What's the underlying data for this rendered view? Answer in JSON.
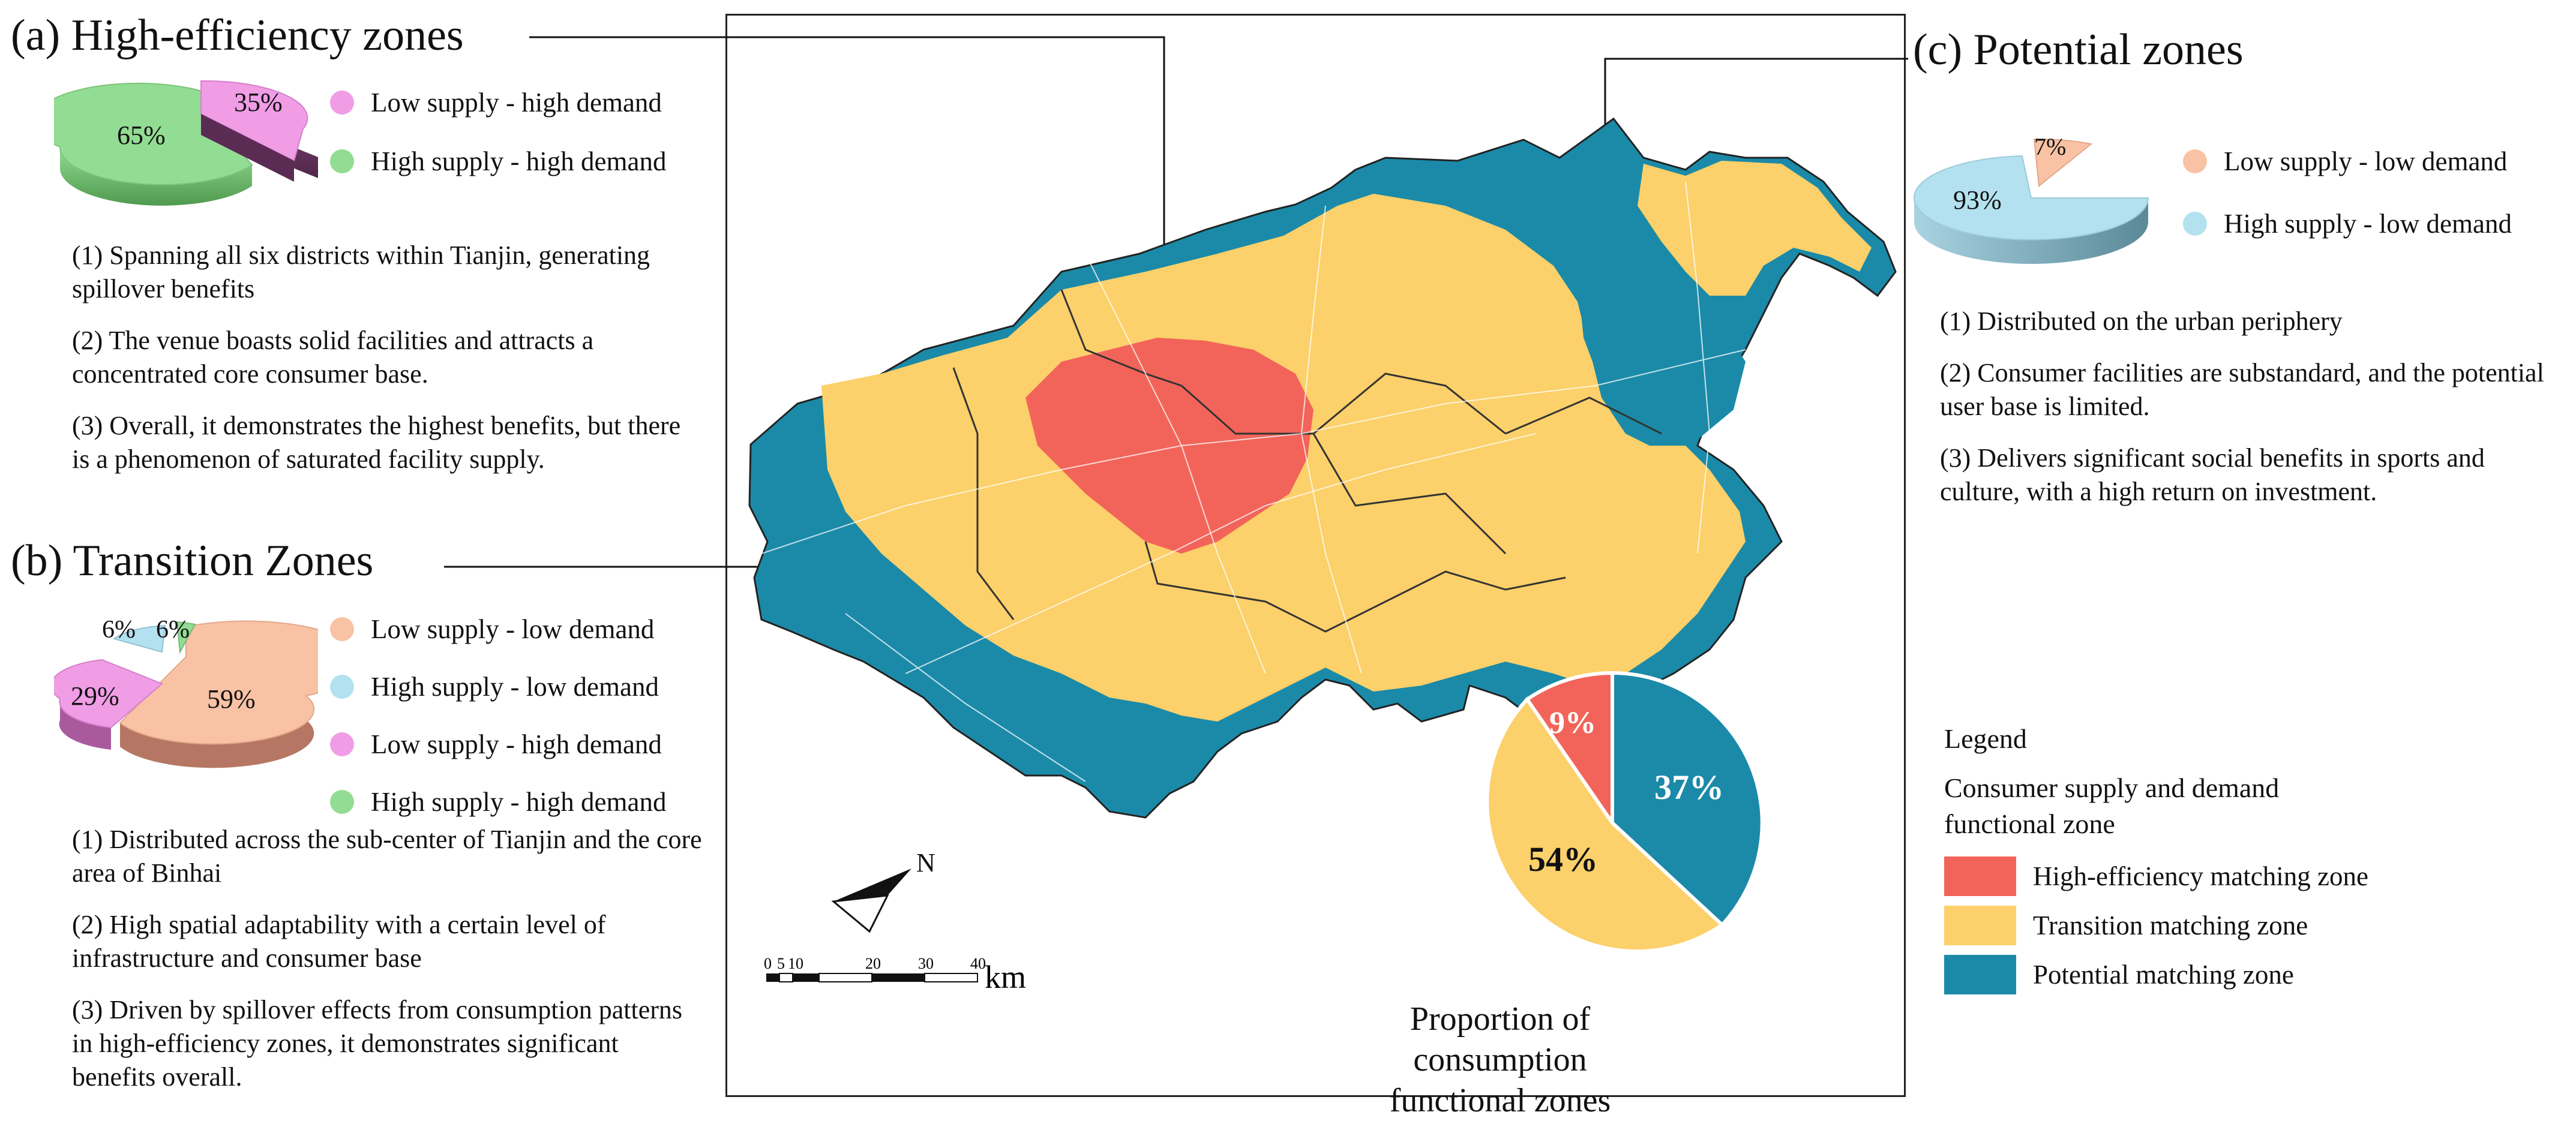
{
  "colors": {
    "high_efficiency": "#f2645a",
    "transition": "#fcd06a",
    "potential": "#1b8aa8",
    "low_supply_high_demand": "#f09de6",
    "high_supply_high_demand": "#93dc93",
    "low_supply_low_demand": "#f9c2a5",
    "high_supply_low_demand": "#b3e1ef"
  },
  "panel_a": {
    "title": "(a) High-efficiency zones",
    "pie_labels": [
      "65%",
      "35%"
    ],
    "legend": [
      "Low supply - high demand",
      "High supply - high demand"
    ],
    "points": [
      "(1) Spanning all six districts within Tianjin, generating spillover benefits",
      "(2) The venue boasts solid facilities and attracts a concentrated core consumer base.",
      "(3) Overall, it demonstrates the highest benefits, but there is a phenomenon of saturated facility supply."
    ]
  },
  "panel_b": {
    "title": "(b) Transition Zones",
    "pie_labels": [
      "59%",
      "29%",
      "6%",
      "6%"
    ],
    "legend": [
      "Low supply - low demand",
      "High supply - low demand",
      "Low supply - high demand",
      "High supply - high demand"
    ],
    "points": [
      "(1) Distributed across the sub-center of Tianjin and the core area of Binhai",
      "(2) High spatial adaptability with a certain level of infrastructure and consumer base",
      "(3) Driven by spillover effects from consumption patterns in high-efficiency zones, it demonstrates significant benefits overall."
    ]
  },
  "panel_c": {
    "title": "(c) Potential zones",
    "pie_labels": [
      "93%",
      "7%"
    ],
    "legend": [
      "Low supply - low demand",
      "High supply - low demand"
    ],
    "points": [
      "(1) Distributed on the urban periphery",
      "(2) Consumer facilities are substandard, and the potential user base is limited.",
      "(3) Delivers significant social benefits in sports and culture, with a high return on investment."
    ]
  },
  "map": {
    "north_label": "N",
    "scale_ticks": [
      "0",
      "5",
      "10",
      "20",
      "30",
      "40"
    ],
    "scale_unit": "km"
  },
  "proportion_pie": {
    "caption": "Proportion of consumption functional zones",
    "labels": [
      "9%",
      "37%",
      "54%"
    ]
  },
  "legend": {
    "title": "Legend",
    "subtitle": "Consumer supply and demand functional zone",
    "items": [
      "High-efficiency matching zone",
      "Transition matching zone",
      "Potential matching zone"
    ]
  },
  "chart_data": [
    {
      "type": "pie",
      "title": "(a) High-efficiency zones",
      "categories": [
        "High supply - high demand",
        "Low supply - high demand"
      ],
      "values": [
        65,
        35
      ]
    },
    {
      "type": "pie",
      "title": "(b) Transition Zones",
      "categories": [
        "Low supply - low demand",
        "Low supply - high demand",
        "High supply - low demand",
        "High supply - high demand"
      ],
      "values": [
        59,
        29,
        6,
        6
      ]
    },
    {
      "type": "pie",
      "title": "(c) Potential zones",
      "categories": [
        "High supply - low demand",
        "Low supply - low demand"
      ],
      "values": [
        93,
        7
      ]
    },
    {
      "type": "pie",
      "title": "Proportion of consumption functional zones",
      "categories": [
        "High-efficiency matching zone",
        "Potential matching zone",
        "Transition matching zone"
      ],
      "values": [
        9,
        37,
        54
      ]
    }
  ]
}
